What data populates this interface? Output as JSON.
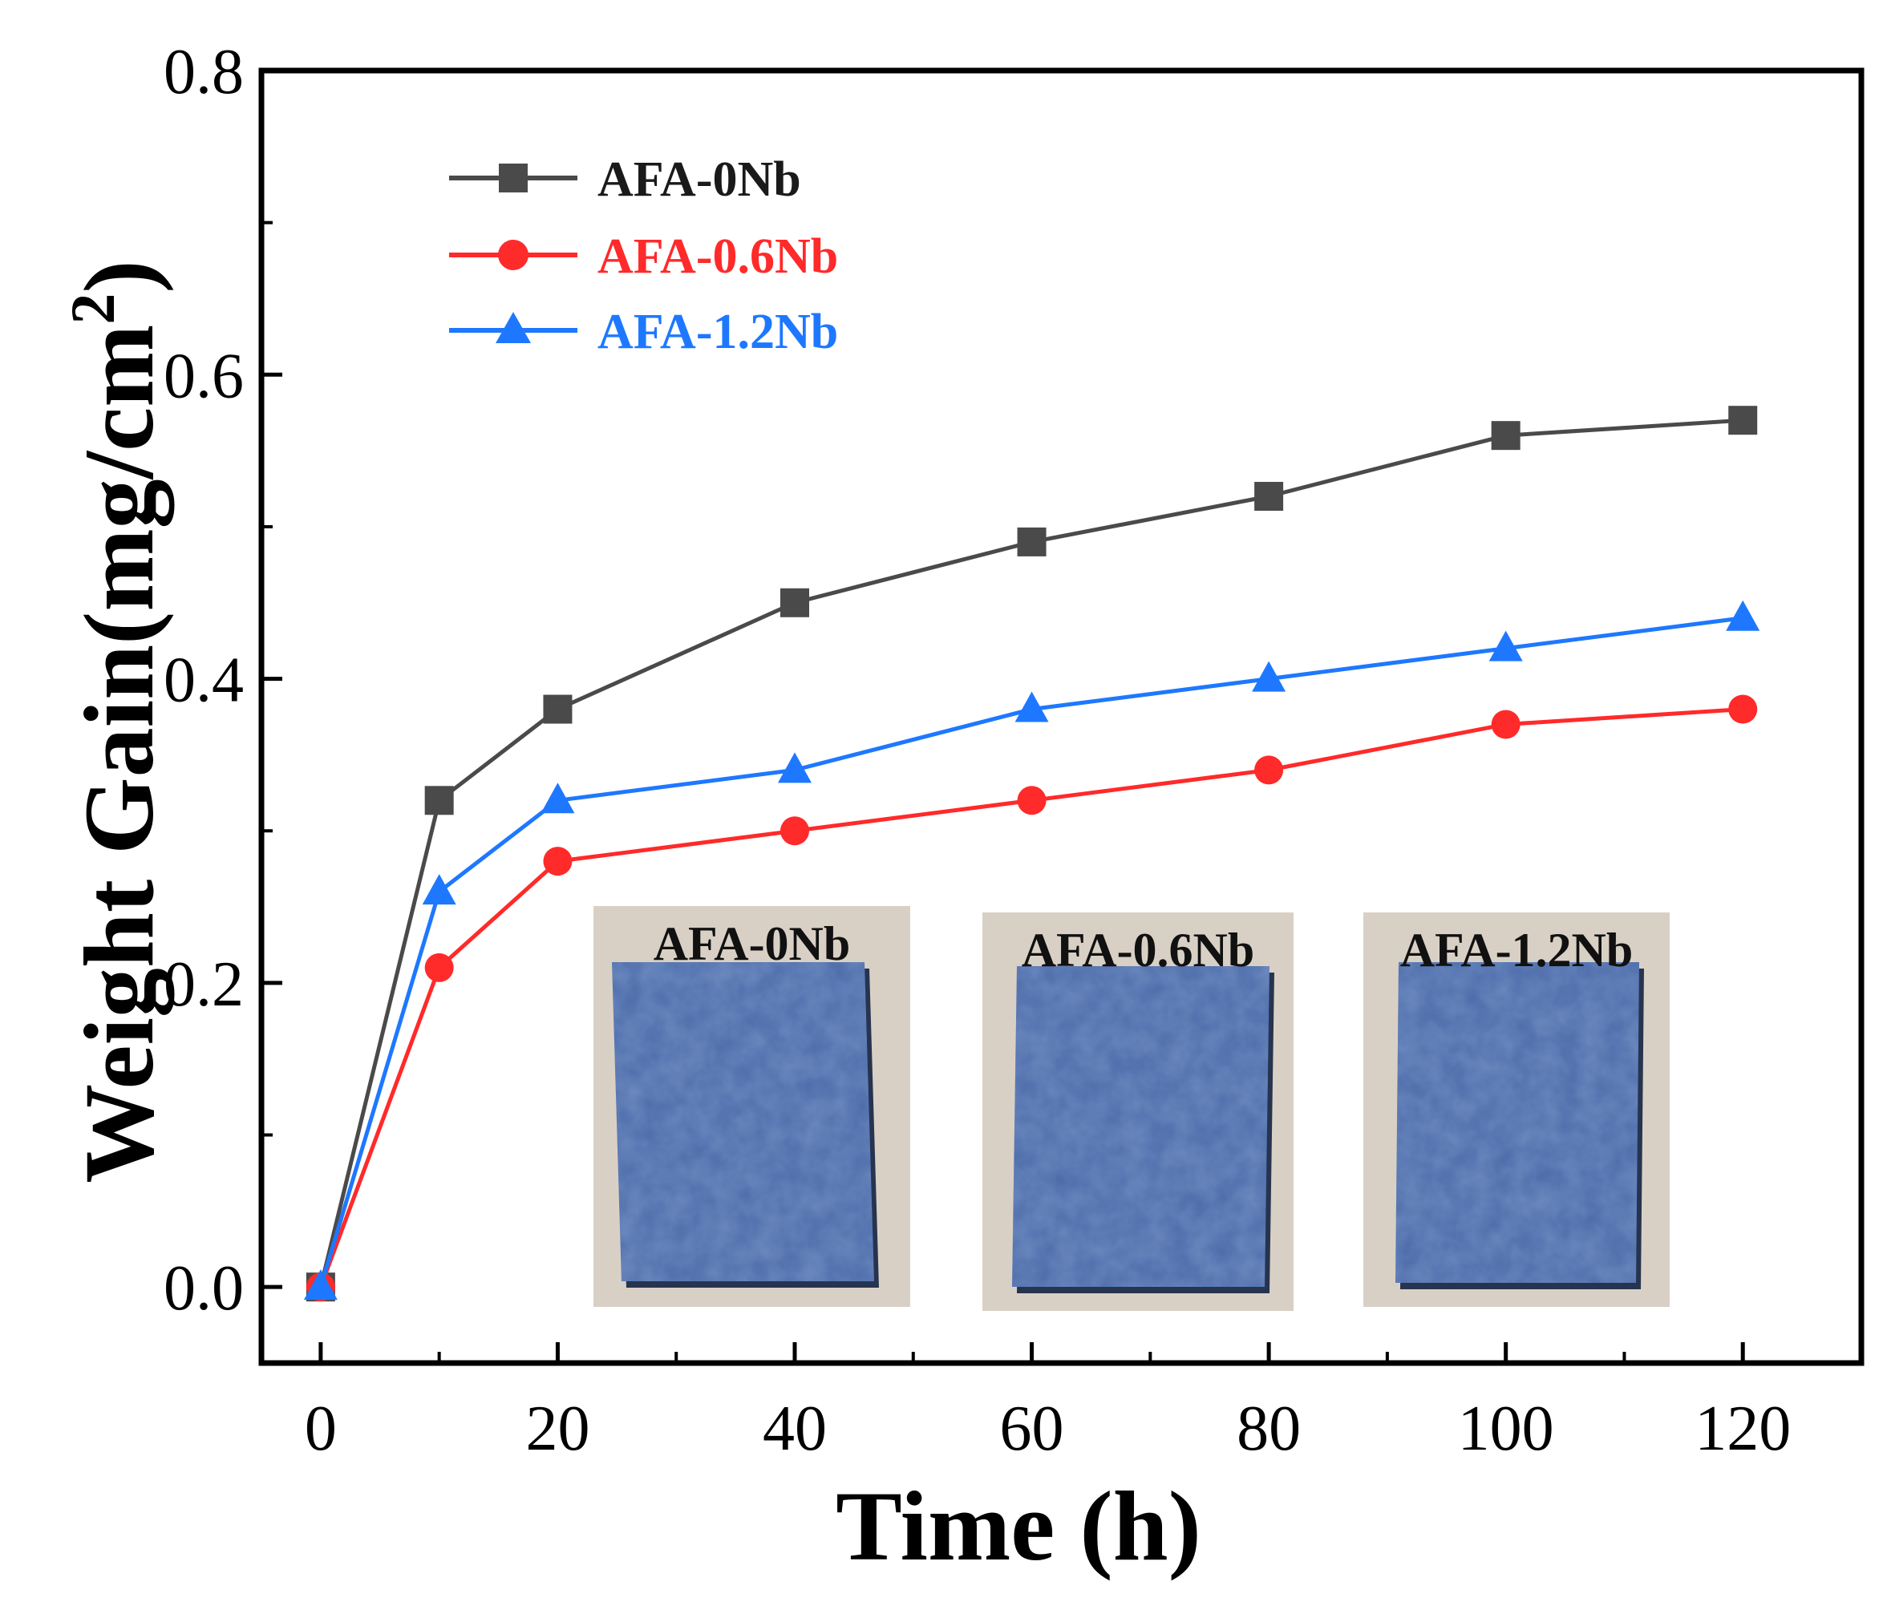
{
  "chart_data": {
    "type": "line",
    "xlabel": "Time (h)",
    "ylabel_main": "Weight Gain(mg/cm",
    "ylabel_sup": "2",
    "ylabel_close": ")",
    "xlim": [
      -5,
      130
    ],
    "ylim": [
      -0.05,
      0.8
    ],
    "xticks": [
      0,
      20,
      40,
      60,
      80,
      100,
      120
    ],
    "yticks": [
      0.0,
      0.2,
      0.4,
      0.6,
      0.8
    ],
    "x": [
      0,
      10,
      20,
      40,
      60,
      80,
      100,
      120
    ],
    "series": [
      {
        "name": "AFA-0Nb",
        "color": "#4a4a4a",
        "marker": "square",
        "values": [
          0.0,
          0.32,
          0.38,
          0.45,
          0.49,
          0.52,
          0.56,
          0.57
        ]
      },
      {
        "name": "AFA-0.6Nb",
        "color": "#ff2a2a",
        "marker": "circle",
        "values": [
          0.0,
          0.21,
          0.28,
          0.3,
          0.32,
          0.34,
          0.37,
          0.38
        ]
      },
      {
        "name": "AFA-1.2Nb",
        "color": "#1e78ff",
        "marker": "triangle",
        "values": [
          0.0,
          0.26,
          0.32,
          0.34,
          0.38,
          0.4,
          0.42,
          0.44
        ]
      }
    ],
    "legend_position": "top-left",
    "inset_photos": [
      {
        "label": "AFA-0Nb"
      },
      {
        "label": "AFA-0.6Nb"
      },
      {
        "label": "AFA-1.2Nb"
      }
    ]
  }
}
